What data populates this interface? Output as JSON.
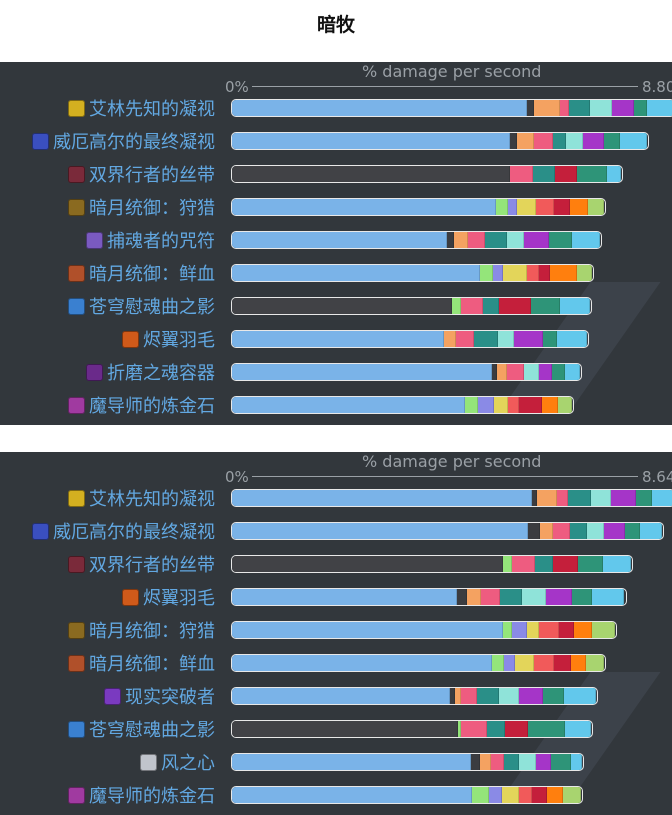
{
  "title": "暗牧",
  "colors": {
    "main": "#7ab3e8",
    "dark": "#3b3c40",
    "orange": "#f4a261",
    "pink": "#ee5c80",
    "teal": "#2a8f88",
    "mint": "#8fe3d9",
    "purple": "#a535c8",
    "green": "#2e9478",
    "cyan": "#62c8ec",
    "red": "#c41f3b",
    "lgreen": "#94e57a",
    "lavender": "#8a8ae6",
    "yellow": "#e3d55a",
    "salmon": "#f15a5a",
    "orange2": "#ff7f0e",
    "lime": "#a8d46f",
    "label": "#62a8e2",
    "panel_bg": "#32373c"
  },
  "chart_data": [
    {
      "type": "bar",
      "orientation": "horizontal-stacked",
      "xlabel": "% damage per second",
      "x_min_label": "0%",
      "x_max_label": "8.80",
      "xlim": [
        0,
        8.8
      ],
      "rows": [
        {
          "name": "艾林先知的凝视",
          "icon": "#d4b020",
          "segments": [
            [
              "main",
              5.89
            ],
            [
              "dark",
              0.13
            ],
            [
              "orange",
              0.53
            ],
            [
              "pink",
              0.17
            ],
            [
              "teal",
              0.43
            ],
            [
              "mint",
              0.43
            ],
            [
              "purple",
              0.44
            ],
            [
              "green",
              0.26
            ],
            [
              "cyan",
              0.52
            ]
          ]
        },
        {
          "name": "威厄高尔的最终凝视",
          "icon": "#3a4fc0",
          "segments": [
            [
              "main",
              5.54
            ],
            [
              "dark",
              0.15
            ],
            [
              "orange",
              0.34
            ],
            [
              "pink",
              0.38
            ],
            [
              "teal",
              0.26
            ],
            [
              "mint",
              0.34
            ],
            [
              "purple",
              0.41
            ],
            [
              "green",
              0.32
            ],
            [
              "cyan",
              0.54
            ]
          ]
        },
        {
          "name": "双界行者的丝带",
          "icon": "#7a2a3a",
          "segments": [
            [
              "dark",
              5.54
            ],
            [
              "pink",
              0.46
            ],
            [
              "teal",
              0.45
            ],
            [
              "red",
              0.43
            ],
            [
              "green",
              0.6
            ],
            [
              "cyan",
              0.28
            ]
          ]
        },
        {
          "name": "暗月统御：狩猎",
          "icon": "#8a6a20",
          "segments": [
            [
              "main",
              5.26
            ],
            [
              "lgreen",
              0.24
            ],
            [
              "lavender",
              0.19
            ],
            [
              "yellow",
              0.38
            ],
            [
              "salmon",
              0.36
            ],
            [
              "red",
              0.32
            ],
            [
              "orange2",
              0.36
            ],
            [
              "lime",
              0.31
            ]
          ]
        },
        {
          "name": "捕魂者的咒符",
          "icon": "#7a5ac0",
          "segments": [
            [
              "main",
              4.3
            ],
            [
              "dark",
              0.13
            ],
            [
              "orange",
              0.27
            ],
            [
              "pink",
              0.34
            ],
            [
              "teal",
              0.44
            ],
            [
              "mint",
              0.34
            ],
            [
              "purple",
              0.5
            ],
            [
              "green",
              0.47
            ],
            [
              "cyan",
              0.56
            ]
          ]
        },
        {
          "name": "暗月统御：鲜血",
          "icon": "#b0502a",
          "segments": [
            [
              "main",
              4.94
            ],
            [
              "lgreen",
              0.27
            ],
            [
              "lavender",
              0.19
            ],
            [
              "yellow",
              0.48
            ],
            [
              "salmon",
              0.24
            ],
            [
              "red",
              0.22
            ],
            [
              "orange2",
              0.54
            ],
            [
              "lime",
              0.3
            ]
          ]
        },
        {
          "name": "苍穹慰魂曲之影",
          "icon": "#3a80d0",
          "segments": [
            [
              "dark",
              4.39
            ],
            [
              "lgreen",
              0.17
            ],
            [
              "pink",
              0.44
            ],
            [
              "teal",
              0.33
            ],
            [
              "red",
              0.64
            ],
            [
              "green",
              0.57
            ],
            [
              "cyan",
              0.6
            ]
          ]
        },
        {
          "name": "烬翼羽毛",
          "icon": "#d05a1a",
          "segments": [
            [
              "main",
              4.24
            ],
            [
              "orange",
              0.23
            ],
            [
              "pink",
              0.36
            ],
            [
              "teal",
              0.47
            ],
            [
              "mint",
              0.33
            ],
            [
              "purple",
              0.58
            ],
            [
              "green",
              0.27
            ],
            [
              "cyan",
              0.6
            ]
          ]
        },
        {
          "name": "折磨之魂容器",
          "icon": "#6a2a8a",
          "segments": [
            [
              "main",
              5.18
            ],
            [
              "dark",
              0.1
            ],
            [
              "orange",
              0.21
            ],
            [
              "pink",
              0.34
            ],
            [
              "mint",
              0.29
            ],
            [
              "purple",
              0.27
            ],
            [
              "green",
              0.26
            ],
            [
              "cyan",
              0.29
            ]
          ]
        },
        {
          "name": "魔导师的炼金石",
          "icon": "#a03aa0",
          "segments": [
            [
              "main",
              4.64
            ],
            [
              "lgreen",
              0.27
            ],
            [
              "lavender",
              0.31
            ],
            [
              "yellow",
              0.29
            ],
            [
              "salmon",
              0.22
            ],
            [
              "red",
              0.46
            ],
            [
              "orange2",
              0.31
            ],
            [
              "lime",
              0.28
            ]
          ]
        }
      ]
    },
    {
      "type": "bar",
      "orientation": "horizontal-stacked",
      "xlabel": "% damage per second",
      "x_min_label": "0%",
      "x_max_label": "8.64",
      "xlim": [
        0,
        8.64
      ],
      "rows": [
        {
          "name": "艾林先知的凝视",
          "icon": "#d4b020",
          "segments": [
            [
              "main",
              5.88
            ],
            [
              "dark",
              0.1
            ],
            [
              "orange",
              0.38
            ],
            [
              "pink",
              0.22
            ],
            [
              "teal",
              0.46
            ],
            [
              "mint",
              0.38
            ],
            [
              "purple",
              0.5
            ],
            [
              "green",
              0.3
            ],
            [
              "cyan",
              0.42
            ]
          ]
        },
        {
          "name": "威厄高尔的最终凝视",
          "icon": "#3a4fc0",
          "segments": [
            [
              "main",
              5.79
            ],
            [
              "dark",
              0.24
            ],
            [
              "orange",
              0.25
            ],
            [
              "pink",
              0.34
            ],
            [
              "teal",
              0.34
            ],
            [
              "mint",
              0.32
            ],
            [
              "purple",
              0.43
            ],
            [
              "green",
              0.29
            ],
            [
              "cyan",
              0.43
            ]
          ]
        },
        {
          "name": "双界行者的丝带",
          "icon": "#7a2a3a",
          "segments": [
            [
              "dark",
              5.31
            ],
            [
              "lgreen",
              0.18
            ],
            [
              "pink",
              0.44
            ],
            [
              "teal",
              0.35
            ],
            [
              "red",
              0.49
            ],
            [
              "green",
              0.49
            ],
            [
              "cyan",
              0.56
            ]
          ]
        },
        {
          "name": "烬翼羽毛",
          "icon": "#d05a1a",
          "segments": [
            [
              "main",
              4.41
            ],
            [
              "dark",
              0.19
            ],
            [
              "orange",
              0.27
            ],
            [
              "pink",
              0.38
            ],
            [
              "teal",
              0.44
            ],
            [
              "mint",
              0.47
            ],
            [
              "purple",
              0.5
            ],
            [
              "green",
              0.4
            ],
            [
              "cyan",
              0.63
            ]
          ]
        },
        {
          "name": "暗月统御：狩猎",
          "icon": "#8a6a20",
          "segments": [
            [
              "main",
              5.31
            ],
            [
              "lgreen",
              0.18
            ],
            [
              "lavender",
              0.28
            ],
            [
              "yellow",
              0.24
            ],
            [
              "salmon",
              0.4
            ],
            [
              "red",
              0.29
            ],
            [
              "orange2",
              0.36
            ],
            [
              "lime",
              0.44
            ]
          ]
        },
        {
          "name": "暗月统御：鲜血",
          "icon": "#b0502a",
          "segments": [
            [
              "main",
              5.1
            ],
            [
              "lgreen",
              0.23
            ],
            [
              "lavender",
              0.21
            ],
            [
              "yellow",
              0.38
            ],
            [
              "salmon",
              0.38
            ],
            [
              "red",
              0.35
            ],
            [
              "orange2",
              0.28
            ],
            [
              "lime",
              0.36
            ]
          ]
        },
        {
          "name": "现实突破者",
          "icon": "#7a3ac0",
          "segments": [
            [
              "main",
              4.28
            ],
            [
              "dark",
              0.08
            ],
            [
              "orange",
              0.13
            ],
            [
              "pink",
              0.32
            ],
            [
              "teal",
              0.42
            ],
            [
              "mint",
              0.39
            ],
            [
              "purple",
              0.48
            ],
            [
              "green",
              0.4
            ],
            [
              "cyan",
              0.63
            ]
          ]
        },
        {
          "name": "苍穹慰魂曲之影",
          "icon": "#3a80d0",
          "segments": [
            [
              "dark",
              4.42
            ],
            [
              "lgreen",
              0.07
            ],
            [
              "pink",
              0.5
            ],
            [
              "teal",
              0.35
            ],
            [
              "red",
              0.45
            ],
            [
              "green",
              0.73
            ],
            [
              "cyan",
              0.51
            ]
          ]
        },
        {
          "name": "风之心",
          "icon": "#c0c4cc",
          "segments": [
            [
              "main",
              4.69
            ],
            [
              "dark",
              0.17
            ],
            [
              "orange",
              0.21
            ],
            [
              "pink",
              0.25
            ],
            [
              "teal",
              0.31
            ],
            [
              "mint",
              0.32
            ],
            [
              "purple",
              0.31
            ],
            [
              "green",
              0.38
            ],
            [
              "cyan",
              0.21
            ]
          ]
        },
        {
          "name": "魔导师的炼金石",
          "icon": "#a03aa0",
          "segments": [
            [
              "main",
              4.7
            ],
            [
              "lgreen",
              0.34
            ],
            [
              "lavender",
              0.25
            ],
            [
              "yellow",
              0.34
            ],
            [
              "salmon",
              0.25
            ],
            [
              "red",
              0.29
            ],
            [
              "orange2",
              0.32
            ],
            [
              "lime",
              0.34
            ]
          ]
        }
      ]
    }
  ]
}
